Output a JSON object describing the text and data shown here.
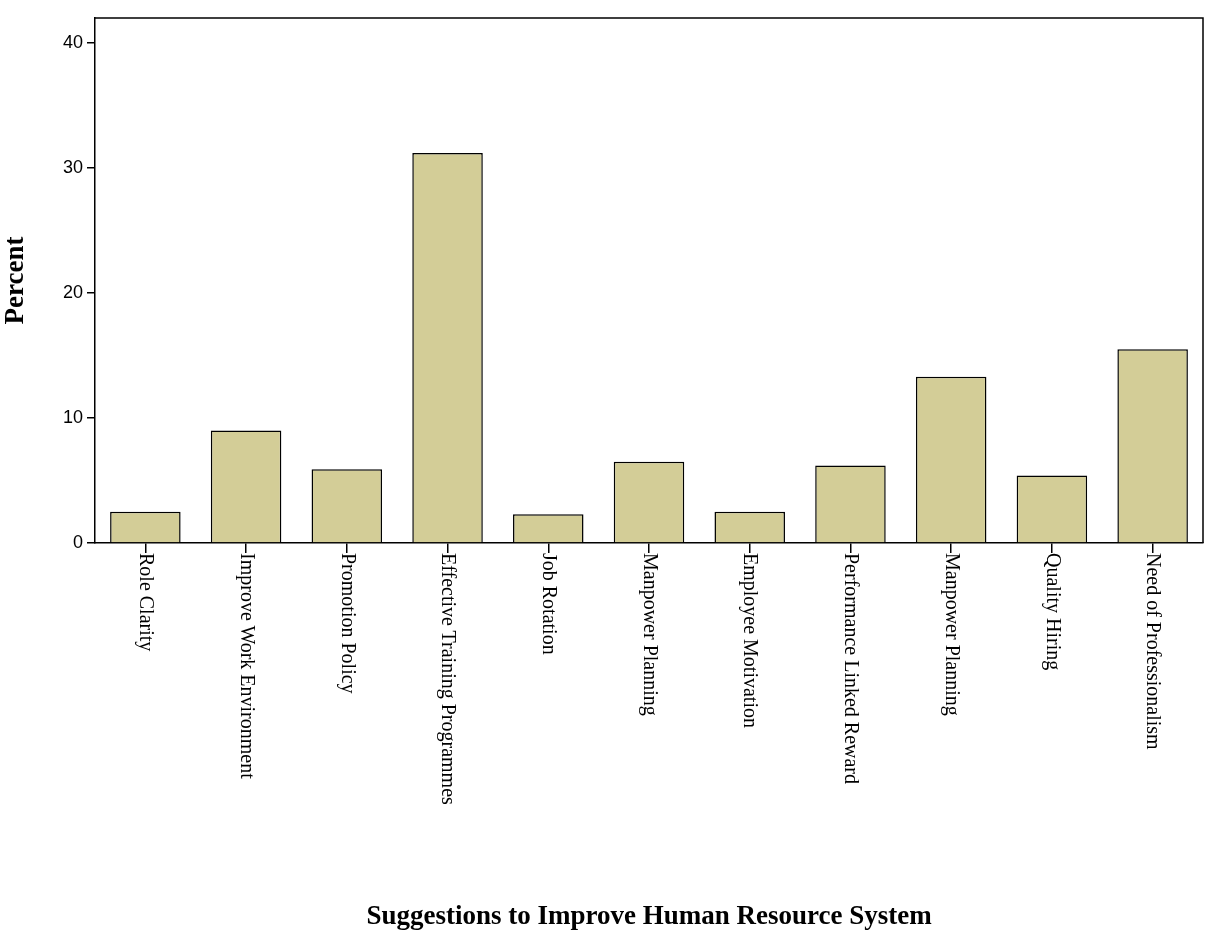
{
  "chart_data": {
    "type": "bar",
    "xlabel": "Suggestions to Improve Human Resource System",
    "ylabel": "Percent",
    "categories": [
      "Role Clarity",
      "Improve Work Environment",
      "Promotion Policy",
      "Effective Training Programmes",
      "Job Rotation",
      "Manpower Planning",
      "Employee Motivation",
      "Performance Linked Reward",
      "Manpower Planning",
      "Quality Hiring",
      "Need of Professionalism"
    ],
    "values": [
      2.5,
      9.0,
      5.9,
      31.2,
      2.3,
      6.5,
      2.5,
      6.2,
      13.3,
      5.4,
      15.5
    ],
    "color": "#d3cd97",
    "ylim": [
      0,
      42
    ],
    "yticks": [
      0,
      10,
      20,
      30,
      40
    ],
    "grid": false,
    "legend": false
  }
}
